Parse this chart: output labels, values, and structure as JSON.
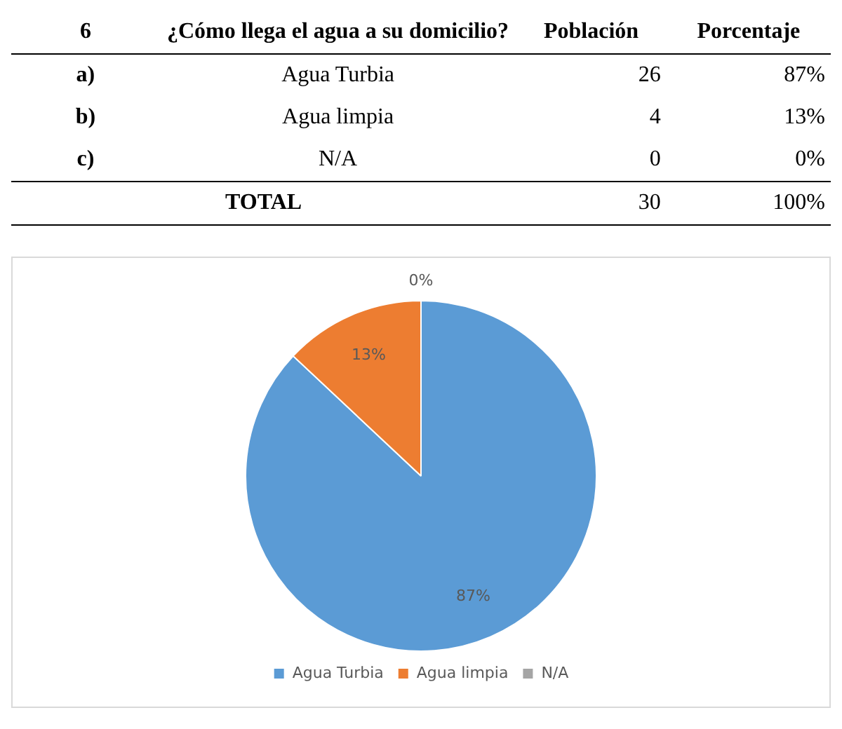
{
  "chart_data": {
    "type": "pie",
    "title": "¿Cómo llega el agua a su domicilio?",
    "categories": [
      "Agua Turbia",
      "Agua limpia",
      "N/A"
    ],
    "values": [
      87,
      13,
      0
    ],
    "value_labels": [
      "87%",
      "13%",
      "0%"
    ],
    "colors": [
      "#5b9bd5",
      "#ed7d31",
      "#a5a5a5"
    ],
    "legend": "bottom",
    "annotations": [
      "6",
      "Población",
      "Porcentaje",
      "a)",
      "b)",
      "c)",
      "26",
      "4",
      "0",
      "TOTAL",
      "30",
      "100%"
    ]
  }
}
